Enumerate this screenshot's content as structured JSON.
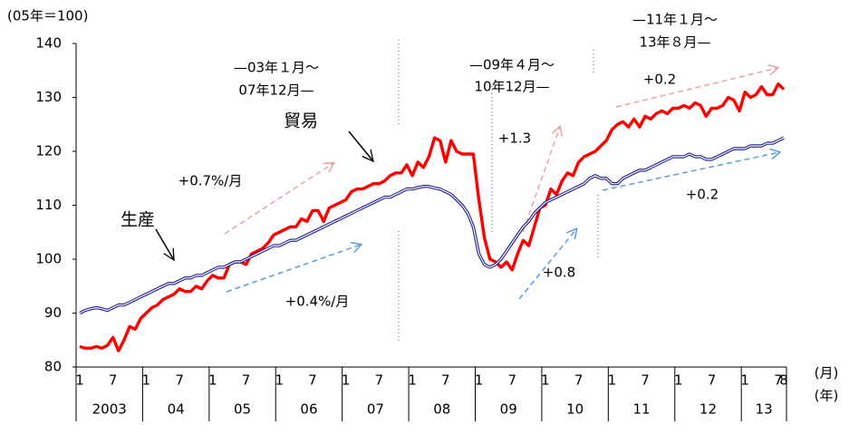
{
  "chart_data": {
    "type": "line",
    "y_label": "(05年＝100)",
    "ylim": [
      80,
      140
    ],
    "yticks": [
      80,
      90,
      100,
      110,
      120,
      130,
      140
    ],
    "categories": [
      "1",
      null,
      null,
      null,
      null,
      null,
      "7",
      null,
      null,
      null,
      null,
      null,
      "1",
      null,
      null,
      null,
      null,
      null,
      "7",
      null,
      null,
      null,
      null,
      null,
      "1",
      null,
      null,
      null,
      null,
      null,
      "7",
      null,
      null,
      null,
      null,
      null,
      "1",
      null,
      null,
      null,
      null,
      null,
      "7",
      null,
      null,
      null,
      null,
      null,
      "1",
      null,
      null,
      null,
      null,
      null,
      "7",
      null,
      null,
      null,
      null,
      null,
      "1",
      null,
      null,
      null,
      null,
      null,
      "7",
      null,
      null,
      null,
      null,
      null,
      "1",
      null,
      null,
      null,
      null,
      null,
      "7",
      null,
      null,
      null,
      null,
      null,
      "1",
      null,
      null,
      null,
      null,
      null,
      "7",
      null,
      null,
      null,
      null,
      null,
      "1",
      null,
      null,
      null,
      null,
      null,
      "7",
      null,
      null,
      null,
      null,
      null,
      "1",
      null,
      null,
      null,
      null,
      null,
      "7",
      null,
      null,
      null,
      null,
      null,
      "1",
      null,
      null,
      null,
      null,
      null,
      "7",
      "8"
    ],
    "years": [
      "2003",
      "04",
      "05",
      "06",
      "07",
      "08",
      "09",
      "10",
      "11",
      "12",
      "13"
    ],
    "month_unit": "(月)",
    "year_unit": "(年)",
    "series": [
      {
        "name": "貿易",
        "color": "#ff0000",
        "style": "single",
        "values": [
          83.8,
          83.5,
          83.5,
          83.8,
          83.5,
          84,
          85.5,
          83,
          85,
          87.5,
          87,
          89,
          90,
          91,
          91.5,
          92.5,
          93,
          93.5,
          94.5,
          94,
          94,
          95,
          94.5,
          96,
          97,
          96.5,
          96.5,
          99,
          99.5,
          99.5,
          99,
          101,
          101.5,
          102,
          103,
          104.5,
          105,
          105.5,
          106,
          106,
          107.5,
          107,
          109,
          109,
          107,
          109.5,
          110,
          110.5,
          111,
          112.5,
          113,
          113,
          113.5,
          114,
          114,
          114.5,
          115.5,
          116,
          116,
          117.5,
          115.5,
          118,
          117,
          119,
          122.5,
          122,
          118,
          122,
          120,
          119.5,
          119.5,
          119.5,
          111,
          104,
          100,
          99.5,
          98.5,
          99.5,
          98,
          101,
          103.5,
          102.5,
          106,
          109.5,
          110,
          113,
          112,
          114.5,
          116,
          115.5,
          118,
          119,
          119.5,
          120,
          121,
          122,
          124,
          125,
          125.5,
          124.5,
          126,
          124.5,
          126.5,
          126,
          127,
          127.5,
          127,
          128,
          128,
          128.5,
          128,
          129,
          128.5,
          126.5,
          128,
          128,
          128.5,
          130,
          129.5,
          127.5,
          131,
          130,
          130.5,
          132,
          130.5,
          130.5,
          132.5,
          131.5
        ]
      },
      {
        "name": "生産",
        "color": "#1a1a8c",
        "style": "double",
        "values": [
          90,
          90.5,
          90.8,
          91,
          90.8,
          90.5,
          91,
          91.5,
          91.5,
          92,
          92.5,
          93,
          93.5,
          94,
          94.5,
          95,
          95.5,
          95.5,
          96,
          96.5,
          96.5,
          97,
          97,
          97.5,
          98,
          98.5,
          98.5,
          99,
          99.5,
          99.5,
          100,
          100.5,
          101,
          101.5,
          102,
          102.5,
          102.5,
          103,
          103.5,
          103.5,
          104,
          104.5,
          105,
          105.5,
          106,
          106.5,
          107,
          107.5,
          108,
          108.5,
          109,
          109.5,
          110,
          110.5,
          111,
          111.5,
          111.5,
          112,
          112.5,
          113,
          113,
          113.3,
          113.5,
          113.5,
          113.2,
          113,
          112.5,
          112,
          111,
          110,
          108.5,
          106,
          101,
          99,
          98.5,
          99,
          100,
          101.5,
          103,
          104.5,
          106,
          107,
          108.5,
          109.5,
          110.5,
          111,
          111.5,
          112,
          112.5,
          113,
          113.5,
          114,
          115,
          115.5,
          115,
          115,
          114,
          114,
          115,
          115.5,
          116,
          116.5,
          116.5,
          117,
          117.5,
          118,
          118.5,
          119,
          119,
          119,
          119.5,
          119,
          119,
          118.5,
          118.5,
          119,
          119.5,
          120,
          120.5,
          120.5,
          120.5,
          121,
          121,
          121,
          121.5,
          121.5,
          122,
          122.5
        ]
      }
    ],
    "annotations": [
      "—03年１月～",
      "07年12月—",
      "—09年４月～",
      "10年12月—",
      "—11年１月～",
      "13年８月—",
      "+0.7%/月",
      "+0.4%/月",
      "+1.3",
      "+0.8",
      "+0.2",
      "+0.2"
    ]
  }
}
